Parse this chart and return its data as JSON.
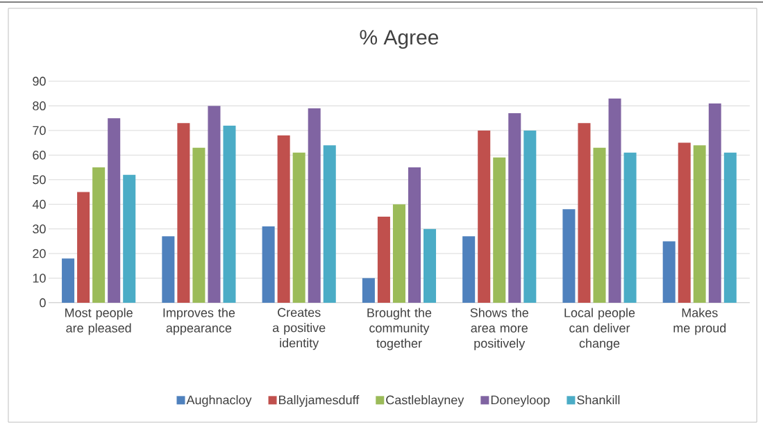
{
  "chart_data": {
    "type": "bar",
    "title": "% Agree",
    "categories": [
      "Most people are pleased",
      "Improves the appearance",
      "Creates a positive identity",
      "Brought the community together",
      "Shows the area more positively",
      "Local people can deliver change",
      "Makes me proud"
    ],
    "series": [
      {
        "name": "Aughnacloy",
        "color": "#4f81bd",
        "values": [
          18,
          27,
          31,
          10,
          27,
          38,
          25
        ]
      },
      {
        "name": "Ballyjamesduff",
        "color": "#c0504d",
        "values": [
          45,
          73,
          68,
          35,
          70,
          73,
          65
        ]
      },
      {
        "name": "Castleblayney",
        "color": "#9bbb59",
        "values": [
          55,
          63,
          61,
          40,
          59,
          63,
          64
        ]
      },
      {
        "name": "Doneyloop",
        "color": "#8064a2",
        "values": [
          75,
          80,
          79,
          55,
          77,
          83,
          81
        ]
      },
      {
        "name": "Shankill",
        "color": "#4bacc6",
        "values": [
          52,
          72,
          64,
          30,
          70,
          61,
          61
        ]
      }
    ],
    "ylim": [
      0,
      90
    ],
    "yticks": [
      0,
      10,
      20,
      30,
      40,
      50,
      60,
      70,
      80,
      90
    ],
    "grid": "y",
    "legend": "bottom"
  }
}
